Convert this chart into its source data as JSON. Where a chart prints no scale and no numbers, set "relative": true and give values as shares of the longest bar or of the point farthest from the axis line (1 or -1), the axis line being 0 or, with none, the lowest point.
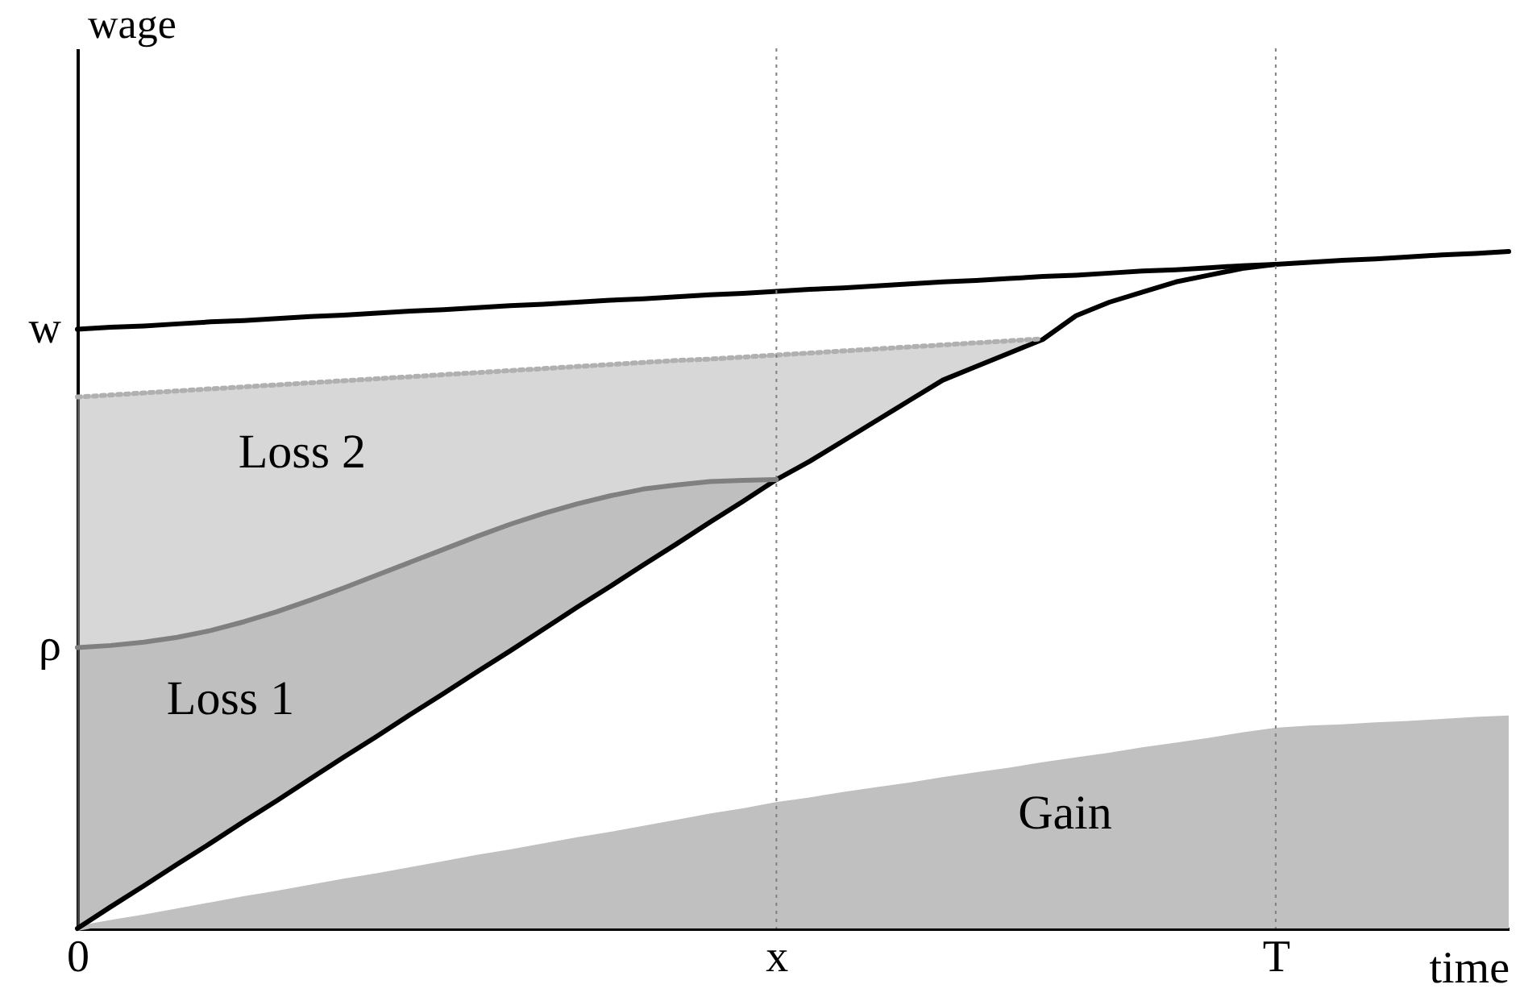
{
  "chart_data": {
    "type": "line",
    "relative": true,
    "xlabel": "time",
    "ylabel": "wage",
    "grid": false,
    "categories": [
      "0",
      null,
      null,
      null,
      null,
      null,
      null,
      null,
      null,
      null,
      null,
      null,
      null,
      null,
      null,
      null,
      null,
      null,
      null,
      null,
      null,
      "x",
      null,
      null,
      null,
      null,
      null,
      null,
      null,
      null,
      null,
      null,
      null,
      null,
      null,
      null,
      "T",
      null,
      null,
      null,
      null,
      null,
      null,
      null
    ],
    "series": [
      {
        "color": "#000000",
        "values": [
          0.885,
          0.888,
          0.89,
          0.893,
          0.896,
          0.898,
          0.901,
          0.904,
          0.906,
          0.909,
          0.912,
          0.914,
          0.917,
          0.92,
          0.922,
          0.925,
          0.928,
          0.93,
          0.933,
          0.936,
          0.938,
          0.941,
          0.944,
          0.946,
          0.949,
          0.952,
          0.955,
          0.957,
          0.96,
          0.963,
          0.965,
          0.968,
          0.971,
          0.973,
          0.976,
          0.979,
          0.981,
          0.984,
          0.987,
          0.989,
          0.992,
          0.995,
          0.997,
          1.0
        ]
      },
      {
        "color": "#000000",
        "values": [
          0,
          0.032,
          0.063,
          0.095,
          0.126,
          0.158,
          0.189,
          0.221,
          0.253,
          0.284,
          0.316,
          0.347,
          0.379,
          0.41,
          0.442,
          0.474,
          0.505,
          0.537,
          0.568,
          0.6,
          0.631,
          0.663,
          0.69,
          0.72,
          0.75,
          0.78,
          0.81,
          0.83,
          0.85,
          0.87,
          0.905,
          0.925,
          0.94,
          0.955,
          0.965,
          0.975,
          0.981,
          null,
          null,
          null,
          null,
          null,
          null,
          null
        ]
      },
      {
        "color": "#b0b0b0",
        "line_style": "dotted",
        "values": [
          0.785,
          0.788,
          0.791,
          0.794,
          0.797,
          0.8,
          0.803,
          0.806,
          0.809,
          0.812,
          0.815,
          0.818,
          0.821,
          0.824,
          0.827,
          0.83,
          0.833,
          0.836,
          0.839,
          0.841,
          0.844,
          0.847,
          0.85,
          0.853,
          0.856,
          0.859,
          0.862,
          0.865,
          0.868,
          0.871,
          null,
          null,
          null,
          null,
          null,
          null,
          null,
          null,
          null,
          null,
          null,
          null,
          null,
          null
        ],
        "lower": [
          0.415,
          0.418,
          0.423,
          0.43,
          0.44,
          0.453,
          0.468,
          0.485,
          0.503,
          0.522,
          0.541,
          0.56,
          0.579,
          0.597,
          0.613,
          0.627,
          0.639,
          0.649,
          0.655,
          0.66,
          0.662,
          0.663,
          0.69,
          0.72,
          0.75,
          0.78,
          0.81,
          0.83,
          0.85,
          0.87,
          null,
          null,
          null,
          null,
          null,
          null,
          null,
          null,
          null,
          null,
          null,
          null,
          null,
          null
        ],
        "upper": [
          0.785,
          0.788,
          0.791,
          0.794,
          0.797,
          0.8,
          0.803,
          0.806,
          0.809,
          0.812,
          0.815,
          0.818,
          0.821,
          0.824,
          0.827,
          0.83,
          0.833,
          0.836,
          0.839,
          0.841,
          0.844,
          0.847,
          0.85,
          0.853,
          0.856,
          0.859,
          0.862,
          0.865,
          0.868,
          0.871,
          null,
          null,
          null,
          null,
          null,
          null,
          null,
          null,
          null,
          null,
          null,
          null,
          null,
          null
        ]
      },
      {
        "color": "#808080",
        "values": [
          0.415,
          0.418,
          0.423,
          0.43,
          0.44,
          0.453,
          0.468,
          0.485,
          0.503,
          0.522,
          0.541,
          0.56,
          0.579,
          0.597,
          0.613,
          0.627,
          0.639,
          0.649,
          0.655,
          0.66,
          0.662,
          0.663,
          null,
          null,
          null,
          null,
          null,
          null,
          null,
          null,
          null,
          null,
          null,
          null,
          null,
          null,
          null,
          null,
          null,
          null,
          null,
          null,
          null,
          null
        ],
        "lower": [
          0,
          0.032,
          0.063,
          0.095,
          0.126,
          0.158,
          0.189,
          0.221,
          0.253,
          0.284,
          0.316,
          0.347,
          0.379,
          0.41,
          0.442,
          0.474,
          0.505,
          0.537,
          0.568,
          0.6,
          0.631,
          0.663,
          null,
          null,
          null,
          null,
          null,
          null,
          null,
          null,
          null,
          null,
          null,
          null,
          null,
          null,
          null,
          null,
          null,
          null,
          null,
          null,
          null,
          null
        ],
        "upper": [
          0.415,
          0.418,
          0.423,
          0.43,
          0.44,
          0.453,
          0.468,
          0.485,
          0.503,
          0.522,
          0.541,
          0.56,
          0.579,
          0.597,
          0.613,
          0.627,
          0.639,
          0.649,
          0.655,
          0.66,
          0.662,
          0.663,
          null,
          null,
          null,
          null,
          null,
          null,
          null,
          null,
          null,
          null,
          null,
          null,
          null,
          null,
          null,
          null,
          null,
          null,
          null,
          null,
          null,
          null
        ]
      },
      {
        "type": "area",
        "color": "#c0c0c0",
        "values": [
          0,
          0.009,
          0.017,
          0.026,
          0.035,
          0.044,
          0.052,
          0.061,
          0.07,
          0.078,
          0.087,
          0.096,
          0.105,
          0.113,
          0.122,
          0.131,
          0.139,
          0.148,
          0.157,
          0.166,
          0.174,
          0.183,
          0.19,
          0.198,
          0.205,
          0.212,
          0.22,
          0.227,
          0.234,
          0.242,
          0.249,
          0.256,
          0.264,
          0.271,
          0.278,
          0.286,
          0.293,
          0.296,
          0.298,
          0.301,
          0.303,
          0.306,
          0.309,
          0.311
        ]
      }
    ],
    "ref_lines": [
      {
        "axis": "x",
        "value": "x",
        "color": "#808080",
        "line_style": "dotted"
      },
      {
        "axis": "x",
        "value": "T",
        "color": "#808080",
        "line_style": "dotted"
      }
    ],
    "annotations": [
      {
        "text": "w",
        "x": "0",
        "y": 0.885
      },
      {
        "text": "ρ",
        "x": "0",
        "y": 0.415
      },
      "Loss 2",
      "Loss 1",
      "Gain"
    ]
  }
}
